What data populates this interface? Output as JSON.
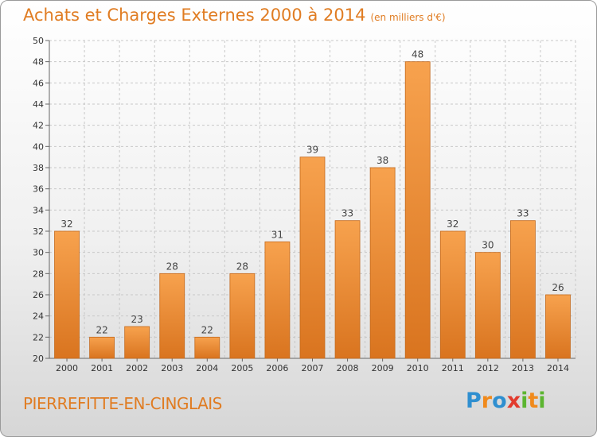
{
  "title": "Achats et Charges Externes 2000 à 2014",
  "subtitle": "(en milliers d'€)",
  "commune": "PIERREFITTE-EN-CINGLAIS",
  "logo": {
    "letters": [
      "P",
      "r",
      "o",
      "x",
      "i",
      "t",
      "i"
    ],
    "colors": [
      "#2f8fd0",
      "#f08a1c",
      "#2f8fd0",
      "#e23b2e",
      "#5cb531",
      "#f08a1c",
      "#5cb531"
    ]
  },
  "colors": {
    "bar_top": "#f7a24e",
    "bar_bottom": "#d9741f",
    "bar_edge": "#c4691c",
    "title": "#e07c22"
  },
  "chart_data": {
    "type": "bar",
    "title": "Achats et Charges Externes 2000 à 2014",
    "subtitle": "(en milliers d'€)",
    "categories": [
      "2000",
      "2001",
      "2002",
      "2003",
      "2004",
      "2005",
      "2006",
      "2007",
      "2008",
      "2009",
      "2010",
      "2011",
      "2012",
      "2013",
      "2014"
    ],
    "values": [
      32,
      22,
      23,
      28,
      22,
      28,
      31,
      39,
      33,
      38,
      48,
      32,
      30,
      33,
      26
    ],
    "ylim": [
      20,
      50
    ],
    "yticks": [
      20,
      22,
      24,
      26,
      28,
      30,
      32,
      34,
      36,
      38,
      40,
      42,
      44,
      46,
      48,
      50
    ],
    "grid": true,
    "data_labels": true
  }
}
